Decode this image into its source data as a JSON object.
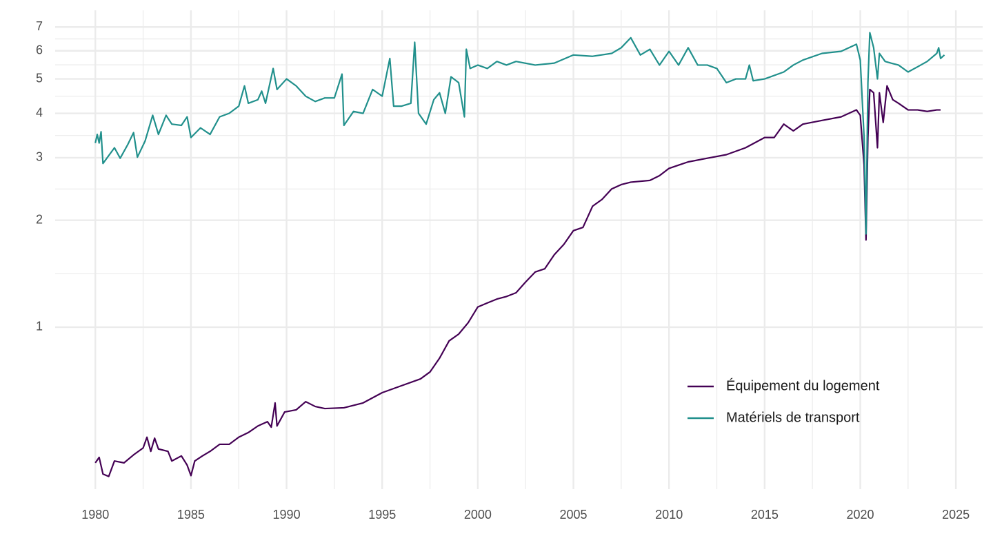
{
  "chart_data": {
    "type": "line",
    "log_y": true,
    "grid": true,
    "legend_position": "bottom-right",
    "xlim": [
      1977.9,
      2026.4
    ],
    "xticks": [
      1980,
      1985,
      1990,
      1995,
      2000,
      2005,
      2010,
      2015,
      2020,
      2025
    ],
    "ylim": [
      0.35,
      7.8
    ],
    "yticks": [
      1,
      2,
      3,
      4,
      5,
      6,
      7
    ],
    "series": [
      {
        "name": "Équipement du logement",
        "color": "#440154",
        "x": [
          1980.0,
          1980.2,
          1980.4,
          1980.7,
          1981.0,
          1981.5,
          1982.0,
          1982.5,
          1982.7,
          1982.9,
          1983.1,
          1983.3,
          1983.8,
          1984.0,
          1984.5,
          1984.8,
          1985.0,
          1985.2,
          1985.6,
          1986.0,
          1986.5,
          1987.0,
          1987.5,
          1988.0,
          1988.5,
          1989.0,
          1989.2,
          1989.4,
          1989.5,
          1989.9,
          1990.5,
          1991.0,
          1991.5,
          1992.0,
          1993.0,
          1994.0,
          1995.0,
          1996.0,
          1997.0,
          1997.5,
          1998.0,
          1998.5,
          1999.0,
          1999.5,
          2000.0,
          2000.5,
          2001.0,
          2001.5,
          2002.0,
          2002.5,
          2003.0,
          2003.5,
          2004.0,
          2004.5,
          2005.0,
          2005.5,
          2006.0,
          2006.5,
          2007.0,
          2007.5,
          2008.0,
          2009.0,
          2009.5,
          2010.0,
          2010.5,
          2011.0,
          2012.0,
          2013.0,
          2014.0,
          2015.0,
          2015.5,
          2016.0,
          2016.5,
          2017.0,
          2018.0,
          2019.0,
          2019.8,
          2020.0,
          2020.2,
          2020.3,
          2020.4,
          2020.5,
          2020.7,
          2020.9,
          2021.0,
          2021.2,
          2021.4,
          2021.7,
          2022.0,
          2022.5,
          2023.0,
          2023.5,
          2024.0,
          2024.2
        ],
        "values": [
          0.415,
          0.43,
          0.386,
          0.38,
          0.42,
          0.415,
          0.437,
          0.457,
          0.49,
          0.447,
          0.487,
          0.454,
          0.447,
          0.42,
          0.434,
          0.409,
          0.382,
          0.42,
          0.434,
          0.447,
          0.468,
          0.468,
          0.49,
          0.505,
          0.527,
          0.542,
          0.523,
          0.612,
          0.527,
          0.577,
          0.585,
          0.617,
          0.598,
          0.59,
          0.593,
          0.612,
          0.654,
          0.684,
          0.715,
          0.748,
          0.818,
          0.915,
          0.956,
          1.03,
          1.14,
          1.17,
          1.2,
          1.22,
          1.25,
          1.34,
          1.43,
          1.46,
          1.6,
          1.71,
          1.87,
          1.91,
          2.19,
          2.29,
          2.45,
          2.52,
          2.56,
          2.59,
          2.67,
          2.8,
          2.86,
          2.92,
          2.99,
          3.06,
          3.2,
          3.42,
          3.42,
          3.73,
          3.57,
          3.73,
          3.82,
          3.91,
          4.09,
          3.95,
          2.86,
          1.76,
          3.42,
          4.67,
          4.57,
          3.2,
          4.57,
          3.77,
          4.78,
          4.37,
          4.27,
          4.09,
          4.09,
          4.05,
          4.09,
          4.09
        ]
      },
      {
        "name": "Matériels de transport",
        "color": "#21908c",
        "x": [
          1980.0,
          1980.1,
          1980.2,
          1980.3,
          1980.4,
          1981.0,
          1981.3,
          1981.7,
          1982.0,
          1982.2,
          1982.6,
          1983.0,
          1983.3,
          1983.7,
          1984.0,
          1984.5,
          1984.8,
          1985.0,
          1985.5,
          1986.0,
          1986.5,
          1987.0,
          1987.5,
          1987.8,
          1988.0,
          1988.5,
          1988.7,
          1988.9,
          1989.3,
          1989.5,
          1990.0,
          1990.5,
          1991.0,
          1991.5,
          1992.0,
          1992.5,
          1992.9,
          1993.0,
          1993.5,
          1994.0,
          1994.5,
          1995.0,
          1995.4,
          1995.6,
          1996.0,
          1996.5,
          1996.7,
          1996.9,
          1997.3,
          1997.7,
          1998.0,
          1998.3,
          1998.6,
          1999.0,
          1999.3,
          1999.4,
          1999.6,
          2000.0,
          2000.5,
          2001.0,
          2001.5,
          2002.0,
          2003.0,
          2004.0,
          2005.0,
          2006.0,
          2007.0,
          2007.5,
          2008.0,
          2008.5,
          2009.0,
          2009.5,
          2010.0,
          2010.5,
          2011.0,
          2011.5,
          2012.0,
          2012.5,
          2013.0,
          2013.5,
          2014.0,
          2014.2,
          2014.4,
          2015.0,
          2016.0,
          2016.5,
          2017.0,
          2018.0,
          2019.0,
          2019.8,
          2020.0,
          2020.2,
          2020.3,
          2020.4,
          2020.5,
          2020.7,
          2020.9,
          2021.0,
          2021.3,
          2021.6,
          2022.0,
          2022.5,
          2023.0,
          2023.5,
          2024.0,
          2024.1,
          2024.2,
          2024.4
        ],
        "values": [
          3.3,
          3.49,
          3.3,
          3.55,
          2.89,
          3.2,
          2.99,
          3.27,
          3.53,
          3.01,
          3.34,
          3.95,
          3.49,
          3.95,
          3.73,
          3.7,
          3.91,
          3.42,
          3.64,
          3.49,
          3.91,
          4.0,
          4.19,
          4.78,
          4.27,
          4.37,
          4.62,
          4.27,
          5.35,
          4.67,
          5.0,
          4.78,
          4.47,
          4.32,
          4.42,
          4.42,
          5.16,
          3.7,
          4.05,
          4.0,
          4.67,
          4.47,
          5.71,
          4.19,
          4.19,
          4.27,
          6.34,
          4.0,
          3.73,
          4.37,
          4.57,
          4.0,
          5.07,
          4.88,
          3.91,
          6.06,
          5.35,
          5.47,
          5.35,
          5.6,
          5.47,
          5.6,
          5.47,
          5.54,
          5.84,
          5.79,
          5.9,
          6.12,
          6.53,
          5.84,
          6.06,
          5.47,
          5.98,
          5.47,
          6.12,
          5.47,
          5.47,
          5.35,
          4.88,
          5.0,
          5.0,
          5.47,
          4.94,
          5.0,
          5.23,
          5.47,
          5.65,
          5.9,
          5.98,
          6.26,
          5.65,
          3.42,
          1.83,
          4.88,
          6.75,
          6.12,
          5.0,
          5.9,
          5.6,
          5.54,
          5.47,
          5.23,
          5.41,
          5.6,
          5.9,
          6.12,
          5.71,
          5.84
        ]
      }
    ]
  }
}
